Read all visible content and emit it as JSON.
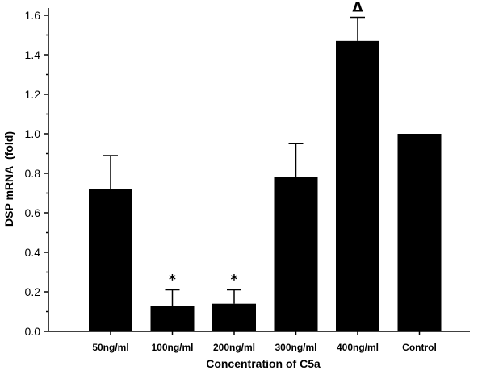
{
  "chart_data": {
    "type": "bar",
    "title": "",
    "xlabel": "Concentration of C5a",
    "ylabel": "DSP mRNA  (fold)",
    "ylim": [
      0,
      1.6
    ],
    "yticks": [
      "0.0",
      "0.2",
      "0.4",
      "0.6",
      "0.8",
      "1.0",
      "1.2",
      "1.4",
      "1.6"
    ],
    "categories": [
      "50ng/ml",
      "100ng/ml",
      "200ng/ml",
      "300ng/ml",
      "400ng/ml",
      "Control"
    ],
    "values": [
      0.72,
      0.13,
      0.14,
      0.78,
      1.47,
      1.0
    ],
    "error_upper": [
      0.17,
      0.08,
      0.07,
      0.17,
      0.12,
      0
    ],
    "annotations": [
      "",
      "*",
      "*",
      "",
      "Δ",
      ""
    ],
    "bar_color": "#000000",
    "grid": false,
    "legend": "none"
  }
}
